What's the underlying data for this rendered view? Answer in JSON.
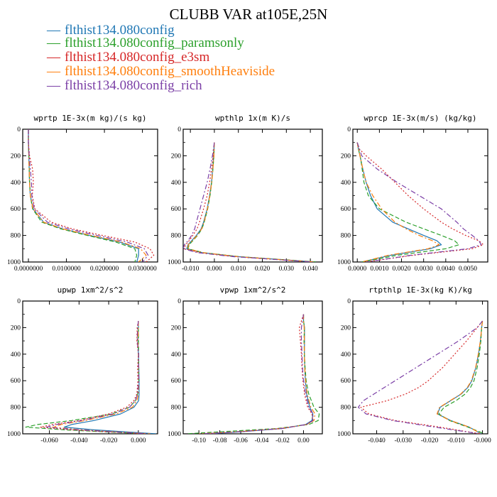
{
  "figure": {
    "title": "CLUBB VAR at105E,25N"
  },
  "chart_data": [
    {
      "type": "line",
      "title": "wprtp  1E-3x(m kg)/(s kg)",
      "xlim": [
        -0.0015,
        0.034
      ],
      "ylim": [
        1000,
        0
      ],
      "xticks": [
        0.0,
        0.01,
        0.02,
        0.03
      ],
      "xtick_labels": [
        "0.0000000",
        "0.0100000",
        "0.0200000",
        "0.0300000"
      ],
      "yticks": [
        0,
        200,
        400,
        600,
        800,
        1000
      ],
      "ytick_labels": [
        "0",
        "200",
        "400",
        "600",
        "800",
        "1000"
      ],
      "y": [
        0,
        100,
        200,
        300,
        400,
        500,
        600,
        700,
        750,
        800,
        850,
        900,
        950,
        1000
      ],
      "series": [
        {
          "name": "flthist134.080config",
          "values": [
            0,
            0,
            0.0001,
            0.0002,
            0.0003,
            0.0005,
            0.0012,
            0.004,
            0.009,
            0.016,
            0.024,
            0.029,
            0.029,
            0.0285
          ]
        },
        {
          "name": "flthist134.080config_paramsonly",
          "values": [
            0,
            0,
            0.0001,
            0.0002,
            0.0003,
            0.0005,
            0.0011,
            0.0035,
            0.0085,
            0.0155,
            0.023,
            0.028,
            0.0285,
            0.028
          ]
        },
        {
          "name": "flthist134.080config_e3sm",
          "values": [
            0,
            0,
            0.0003,
            0.0011,
            0.0013,
            0.001,
            0.0017,
            0.006,
            0.0115,
            0.0195,
            0.028,
            0.032,
            0.033,
            0.031
          ]
        },
        {
          "name": "flthist134.080config_smoothHeaviside",
          "values": [
            0,
            0,
            0.0001,
            0.0002,
            0.0003,
            0.0005,
            0.0012,
            0.004,
            0.009,
            0.0165,
            0.0245,
            0.0295,
            0.031,
            0.029
          ]
        },
        {
          "name": "flthist134.080config_rich",
          "values": [
            0,
            0,
            0.0002,
            0.0005,
            0.0008,
            0.0009,
            0.0015,
            0.005,
            0.0105,
            0.018,
            0.026,
            0.0305,
            0.0315,
            0.03
          ]
        }
      ]
    },
    {
      "type": "line",
      "title": "wpthlp  1x(m K)/s",
      "xlim": [
        -0.013,
        0.045
      ],
      "ylim": [
        1000,
        0
      ],
      "xticks": [
        -0.01,
        0.0,
        0.01,
        0.02,
        0.03,
        0.04
      ],
      "xtick_labels": [
        "-0.010",
        "0.000",
        "0.010",
        "0.020",
        "0.030",
        "0.040"
      ],
      "yticks": [
        0,
        200,
        400,
        600,
        800,
        1000
      ],
      "ytick_labels": [
        "0",
        "200",
        "400",
        "600",
        "800",
        "1000"
      ],
      "y": [
        100,
        200,
        300,
        400,
        500,
        600,
        700,
        750,
        800,
        840,
        870,
        900,
        930,
        960,
        1000
      ],
      "series": [
        {
          "name": "flthist134.080config",
          "values": [
            0,
            -0.0003,
            -0.0007,
            -0.0012,
            -0.002,
            -0.003,
            -0.0045,
            -0.0055,
            -0.0075,
            -0.0095,
            -0.011,
            -0.0115,
            -0.005,
            0.01,
            0.042
          ]
        },
        {
          "name": "flthist134.080config_paramsonly",
          "values": [
            0,
            -0.0002,
            -0.0006,
            -0.0011,
            -0.0018,
            -0.0028,
            -0.0042,
            -0.0052,
            -0.007,
            -0.009,
            -0.0105,
            -0.011,
            -0.0045,
            0.0105,
            0.043
          ]
        },
        {
          "name": "flthist134.080config_e3sm",
          "values": [
            0,
            -0.0005,
            -0.0012,
            -0.002,
            -0.003,
            -0.0045,
            -0.0062,
            -0.0072,
            -0.009,
            -0.0105,
            -0.012,
            -0.0125,
            -0.006,
            0.009,
            0.041
          ]
        },
        {
          "name": "flthist134.080config_smoothHeaviside",
          "values": [
            0,
            -0.0002,
            -0.0006,
            -0.0011,
            -0.0019,
            -0.0029,
            -0.0043,
            -0.0053,
            -0.0072,
            -0.0092,
            -0.0108,
            -0.0112,
            -0.0048,
            0.0098,
            0.042
          ]
        },
        {
          "name": "flthist134.080config_rich",
          "values": [
            0,
            -0.0008,
            -0.0018,
            -0.003,
            -0.0045,
            -0.006,
            -0.0075,
            -0.0082,
            -0.0095,
            -0.011,
            -0.0125,
            -0.013,
            -0.007,
            0.008,
            0.041
          ]
        }
      ]
    },
    {
      "type": "line",
      "title": "wprcp  1E-3x(m/s) (kg/kg)",
      "xlim": [
        -0.0002,
        0.0059
      ],
      "ylim": [
        1000,
        0
      ],
      "xticks": [
        0.0,
        0.001,
        0.002,
        0.003,
        0.004,
        0.005
      ],
      "xtick_labels": [
        "0.0000",
        "0.0010",
        "0.0020",
        "0.0030",
        "0.0040",
        "0.0050"
      ],
      "yticks": [
        0,
        200,
        400,
        600,
        800,
        1000
      ],
      "ytick_labels": [
        "0",
        "200",
        "400",
        "600",
        "800",
        "1000"
      ],
      "y": [
        100,
        150,
        200,
        300,
        400,
        500,
        600,
        700,
        750,
        800,
        840,
        870,
        900,
        950,
        1000
      ],
      "series": [
        {
          "name": "flthist134.080config",
          "values": [
            0,
            5e-05,
            0.00012,
            0.00025,
            0.0004,
            0.0006,
            0.0009,
            0.0016,
            0.0023,
            0.003,
            0.0036,
            0.0038,
            0.0033,
            0.0015,
            0.0002
          ]
        },
        {
          "name": "flthist134.080config_paramsonly",
          "values": [
            0,
            5e-05,
            0.00013,
            0.00022,
            0.0003,
            0.0005,
            0.001,
            0.0022,
            0.003,
            0.0038,
            0.0044,
            0.0046,
            0.004,
            0.0018,
            0.0002
          ]
        },
        {
          "name": "flthist134.080config_e3sm",
          "values": [
            0,
            0.0001,
            0.0004,
            0.0011,
            0.0017,
            0.0023,
            0.003,
            0.0038,
            0.0043,
            0.0049,
            0.0055,
            0.0057,
            0.0052,
            0.0025,
            0.0004
          ]
        },
        {
          "name": "flthist134.080config_smoothHeaviside",
          "values": [
            0,
            5e-05,
            0.00012,
            0.00025,
            0.0004,
            0.0007,
            0.0011,
            0.0017,
            0.0022,
            0.0028,
            0.0034,
            0.0037,
            0.0032,
            0.0014,
            0.0002
          ]
        },
        {
          "name": "flthist134.080config_rich",
          "values": [
            0,
            0.0001,
            0.0002,
            0.0009,
            0.0018,
            0.0028,
            0.0038,
            0.0045,
            0.0048,
            0.0052,
            0.0055,
            0.0056,
            0.005,
            0.0024,
            0.0004
          ]
        }
      ]
    },
    {
      "type": "line",
      "title": "upwp  1xm^2/s^2",
      "xlim": [
        -0.078,
        0.013
      ],
      "ylim": [
        1000,
        0
      ],
      "xticks": [
        -0.06,
        -0.04,
        -0.02,
        0.0
      ],
      "xtick_labels": [
        "-0.060",
        "-0.040",
        "-0.020",
        "0.000"
      ],
      "yticks": [
        0,
        200,
        400,
        600,
        800,
        1000
      ],
      "ytick_labels": [
        "0",
        "200",
        "400",
        "600",
        "800",
        "1000"
      ],
      "y": [
        150,
        200,
        300,
        400,
        500,
        600,
        700,
        750,
        800,
        850,
        900,
        930,
        950,
        970,
        1000
      ],
      "series": [
        {
          "name": "flthist134.080config",
          "values": [
            0,
            0,
            -0.0002,
            0,
            0.0003,
            0.0005,
            0.0005,
            0.0002,
            -0.003,
            -0.012,
            -0.03,
            -0.045,
            -0.05,
            -0.03,
            0.012
          ]
        },
        {
          "name": "flthist134.080config_paramsonly",
          "values": [
            0,
            0,
            0,
            0.0002,
            0.0002,
            0.0003,
            -0.0005,
            -0.002,
            -0.006,
            -0.018,
            -0.045,
            -0.068,
            -0.076,
            -0.05,
            0.005
          ]
        },
        {
          "name": "flthist134.080config_e3sm",
          "values": [
            0,
            -0.0008,
            -0.001,
            0,
            -0.0005,
            -0.0003,
            -0.001,
            -0.003,
            -0.008,
            -0.02,
            -0.04,
            -0.058,
            -0.066,
            -0.045,
            0.005
          ]
        },
        {
          "name": "flthist134.080config_smoothHeaviside",
          "values": [
            0,
            0,
            -0.0003,
            0,
            0.0002,
            0.0003,
            0,
            -0.001,
            -0.004,
            -0.015,
            -0.036,
            -0.052,
            -0.058,
            -0.038,
            0.008
          ]
        },
        {
          "name": "flthist134.080config_rich",
          "values": [
            0,
            -0.0005,
            -0.0008,
            0.0002,
            0.0001,
            0.0002,
            -0.0005,
            -0.002,
            -0.006,
            -0.017,
            -0.038,
            -0.055,
            -0.062,
            -0.04,
            0.006
          ]
        }
      ]
    },
    {
      "type": "line",
      "title": "vpwp  1xm^2/s^2",
      "xlim": [
        -0.115,
        0.018
      ],
      "ylim": [
        1000,
        0
      ],
      "xticks": [
        -0.1,
        -0.08,
        -0.06,
        -0.04,
        -0.02,
        0.0
      ],
      "xtick_labels": [
        "-0.10",
        "-0.08",
        "-0.06",
        "-0.04",
        "-0.02",
        "0.00"
      ],
      "yticks": [
        0,
        200,
        400,
        600,
        800,
        1000
      ],
      "ytick_labels": [
        "0",
        "200",
        "400",
        "600",
        "800",
        "1000"
      ],
      "y": [
        100,
        150,
        200,
        300,
        400,
        500,
        600,
        700,
        800,
        850,
        900,
        930,
        960,
        985,
        1000
      ],
      "series": [
        {
          "name": "flthist134.080config",
          "values": [
            0,
            0,
            0.001,
            0.001,
            0.0008,
            0.0012,
            0.0018,
            0.003,
            0.006,
            0.009,
            0.008,
            0.002,
            -0.02,
            -0.06,
            -0.09
          ]
        },
        {
          "name": "flthist134.080config_paramsonly",
          "values": [
            0,
            0,
            0.0008,
            0.0005,
            0.0008,
            0.0015,
            0.0025,
            0.005,
            0.01,
            0.015,
            0.014,
            0.005,
            -0.025,
            -0.08,
            -0.112
          ]
        },
        {
          "name": "flthist134.080config_e3sm",
          "values": [
            0,
            -0.002,
            -0.004,
            -0.003,
            -0.002,
            -0.0015,
            -0.0005,
            0.001,
            0.004,
            0.008,
            0.009,
            0.003,
            -0.02,
            -0.062,
            -0.095
          ]
        },
        {
          "name": "flthist134.080config_smoothHeaviside",
          "values": [
            0,
            0,
            0.0006,
            0.0008,
            0.0008,
            0.0012,
            0.002,
            0.0035,
            0.007,
            0.011,
            0.01,
            0.003,
            -0.022,
            -0.065,
            -0.1
          ]
        },
        {
          "name": "flthist134.080config_rich",
          "values": [
            0,
            -0.001,
            -0.002,
            -0.002,
            -0.0015,
            -0.001,
            0,
            0.002,
            0.005,
            0.009,
            0.009,
            0.003,
            -0.021,
            -0.063,
            -0.097
          ]
        }
      ]
    },
    {
      "type": "line",
      "title": "rtpthlp  1E-3x(kg K)/kg",
      "xlim": [
        -0.049,
        0.002
      ],
      "ylim": [
        1000,
        0
      ],
      "xticks": [
        -0.04,
        -0.03,
        -0.02,
        -0.01,
        0.0
      ],
      "xtick_labels": [
        "-0.040",
        "-0.030",
        "-0.020",
        "-0.010",
        "-0.000"
      ],
      "yticks": [
        0,
        200,
        400,
        600,
        800,
        1000
      ],
      "ytick_labels": [
        "0",
        "200",
        "400",
        "600",
        "800",
        "1000"
      ],
      "y": [
        150,
        200,
        300,
        400,
        500,
        600,
        650,
        700,
        750,
        800,
        850,
        900,
        950,
        1000
      ],
      "series": [
        {
          "name": "flthist134.080config",
          "values": [
            0,
            -0.0003,
            -0.0008,
            -0.0015,
            -0.0025,
            -0.004,
            -0.0055,
            -0.008,
            -0.012,
            -0.016,
            -0.017,
            -0.012,
            -0.005,
            -0.0005
          ]
        },
        {
          "name": "flthist134.080config_paramsonly",
          "values": [
            0,
            -0.0003,
            -0.0006,
            -0.0012,
            -0.002,
            -0.0032,
            -0.0045,
            -0.0065,
            -0.01,
            -0.0145,
            -0.0165,
            -0.0125,
            -0.0055,
            0.0008
          ]
        },
        {
          "name": "flthist134.080config_e3sm",
          "values": [
            0,
            -0.002,
            -0.006,
            -0.0105,
            -0.015,
            -0.0205,
            -0.024,
            -0.029,
            -0.036,
            -0.046,
            -0.043,
            -0.033,
            -0.016,
            -0.001
          ]
        },
        {
          "name": "flthist134.080config_smoothHeaviside",
          "values": [
            0,
            -0.0003,
            -0.0008,
            -0.0016,
            -0.0026,
            -0.0042,
            -0.0057,
            -0.0082,
            -0.0122,
            -0.0162,
            -0.0172,
            -0.0122,
            -0.005,
            -0.0005
          ]
        },
        {
          "name": "flthist134.080config_rich",
          "values": [
            0,
            -0.002,
            -0.009,
            -0.017,
            -0.025,
            -0.033,
            -0.037,
            -0.041,
            -0.045,
            -0.047,
            -0.044,
            -0.034,
            -0.018,
            -0.001
          ]
        }
      ]
    }
  ],
  "legend": [
    {
      "label": "flthist134.080config",
      "color": "#1f77b4",
      "dash": "solid"
    },
    {
      "label": "flthist134.080config_paramsonly",
      "color": "#2ca02c",
      "dash": "dashed"
    },
    {
      "label": "flthist134.080config_e3sm",
      "color": "#d62728",
      "dash": "dotted"
    },
    {
      "label": "flthist134.080config_smoothHeaviside",
      "color": "#ff7f0e",
      "dash": "dashdot"
    },
    {
      "label": "flthist134.080config_rich",
      "color": "#7b3fa6",
      "dash": "dashdot"
    }
  ],
  "legend_marker": "—"
}
